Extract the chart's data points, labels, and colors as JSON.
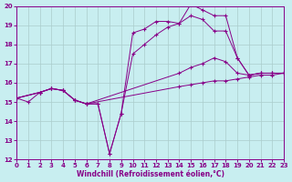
{
  "xlabel": "Windchill (Refroidissement éolien,°C)",
  "bg_color": "#c8eef0",
  "line_color": "#880088",
  "grid_color": "#aacccc",
  "xlim": [
    0,
    23
  ],
  "ylim": [
    12,
    20
  ],
  "xtick_step": 1,
  "ytick_step": 1,
  "lines": [
    {
      "x": [
        0,
        1,
        2,
        3,
        4,
        5,
        6,
        7,
        8,
        9,
        10,
        11,
        12,
        13,
        14,
        15,
        16,
        17,
        18,
        19,
        20,
        21,
        22,
        23
      ],
      "y": [
        15.2,
        15.0,
        15.5,
        15.7,
        15.6,
        15.1,
        14.9,
        14.9,
        12.3,
        14.4,
        18.6,
        18.8,
        19.2,
        19.2,
        19.1,
        20.1,
        19.8,
        19.5,
        19.5,
        17.3,
        16.4,
        16.5,
        16.5,
        16.5
      ]
    },
    {
      "x": [
        0,
        2,
        3,
        4,
        5,
        6,
        7,
        8,
        9,
        10,
        11,
        12,
        13,
        14,
        15,
        16,
        17,
        18,
        19,
        20,
        21,
        22,
        23
      ],
      "y": [
        15.2,
        15.5,
        15.7,
        15.6,
        15.1,
        14.9,
        14.9,
        12.3,
        14.4,
        17.5,
        18.0,
        18.5,
        18.9,
        19.1,
        19.5,
        19.3,
        18.7,
        18.7,
        17.3,
        16.4,
        16.5,
        16.5,
        16.5
      ]
    },
    {
      "x": [
        0,
        2,
        3,
        4,
        5,
        6,
        14,
        15,
        16,
        17,
        18,
        19,
        20,
        21,
        22,
        23
      ],
      "y": [
        15.2,
        15.5,
        15.7,
        15.6,
        15.1,
        14.9,
        16.5,
        16.8,
        17.0,
        17.3,
        17.1,
        16.5,
        16.4,
        16.5,
        16.5,
        16.5
      ]
    },
    {
      "x": [
        0,
        2,
        3,
        4,
        5,
        6,
        14,
        15,
        16,
        17,
        18,
        19,
        20,
        21,
        22,
        23
      ],
      "y": [
        15.2,
        15.5,
        15.7,
        15.6,
        15.1,
        14.9,
        15.8,
        15.9,
        16.0,
        16.1,
        16.1,
        16.2,
        16.3,
        16.4,
        16.4,
        16.5
      ]
    }
  ]
}
